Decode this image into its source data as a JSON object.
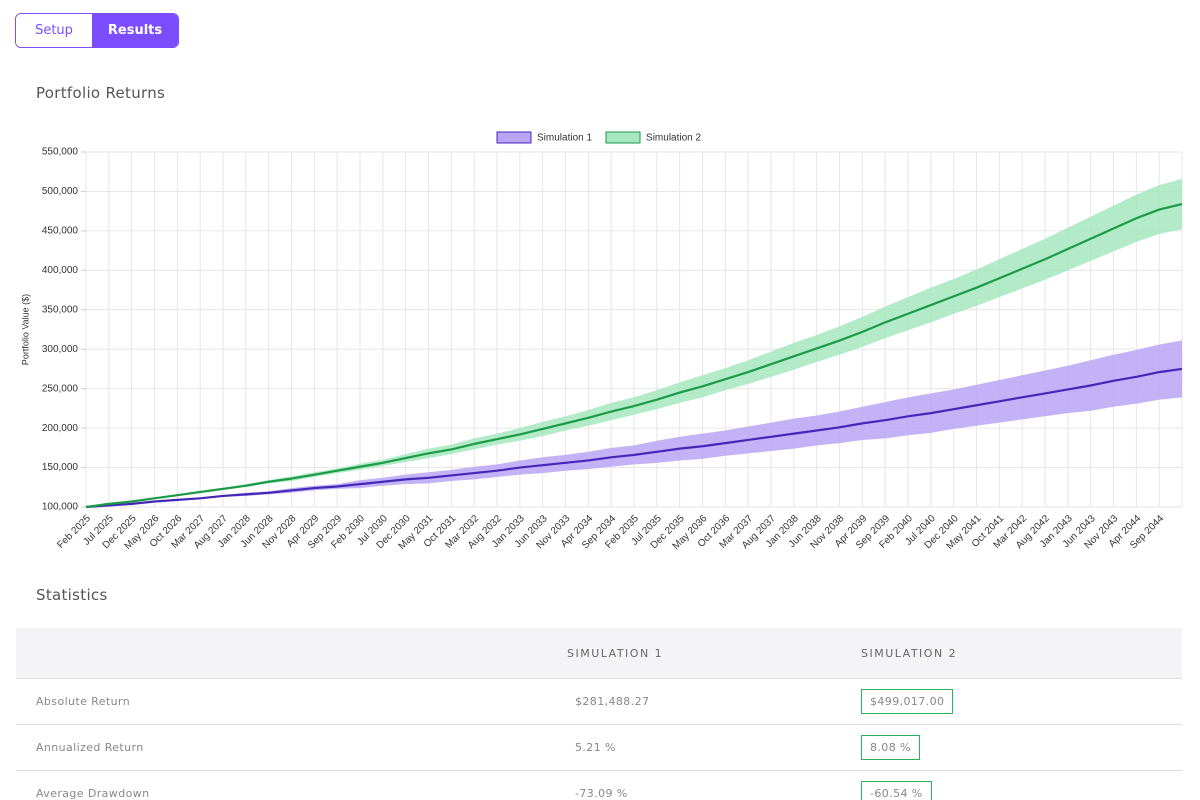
{
  "tabs": [
    "Setup",
    "Results"
  ],
  "chart_data": {
    "type": "line",
    "title": "Portfolio Returns",
    "y_label": "Portfolio Value ($)",
    "categories": [
      "Feb 2025",
      "Jul 2025",
      "Dec 2025",
      "May 2026",
      "Oct 2026",
      "Mar 2027",
      "Aug 2027",
      "Jan 2028",
      "Jun 2028",
      "Nov 2028",
      "Apr 2029",
      "Sep 2029",
      "Feb 2030",
      "Jul 2030",
      "Dec 2030",
      "May 2031",
      "Oct 2031",
      "Mar 2032",
      "Aug 2032",
      "Jan 2033",
      "Jun 2033",
      "Nov 2033",
      "Apr 2034",
      "Sep 2034",
      "Feb 2035",
      "Jul 2035",
      "Dec 2035",
      "May 2036",
      "Oct 2036",
      "Mar 2037",
      "Aug 2037",
      "Jan 2038",
      "Jun 2038",
      "Nov 2038",
      "Apr 2039",
      "Sep 2039",
      "Feb 2040",
      "Jul 2040",
      "Dec 2040",
      "May 2041",
      "Oct 2041",
      "Mar 2042",
      "Aug 2042",
      "Jan 2043",
      "Jun 2043",
      "Nov 2043",
      "Apr 2044",
      "Sep 2044",
      null
    ],
    "series": [
      {
        "name": "Simulation 1",
        "color": "#4527b8",
        "band_color": "#b9a5f4",
        "values": [
          100000,
          102000,
          104000,
          107000,
          109000,
          111000,
          114000,
          116000,
          118000,
          121000,
          124000,
          126000,
          129000,
          132000,
          135000,
          137000,
          140000,
          143000,
          146000,
          150000,
          153000,
          156000,
          159000,
          163000,
          166000,
          170000,
          174000,
          177000,
          181000,
          185000,
          189000,
          193000,
          197000,
          201000,
          206000,
          210000,
          215000,
          219000,
          224000,
          229000,
          234000,
          239000,
          244000,
          249000,
          254000,
          260000,
          265000,
          271000,
          275000
        ],
        "lower": [
          100000,
          102000,
          104000,
          106000,
          108000,
          110000,
          113000,
          114000,
          116000,
          118000,
          121000,
          123000,
          124000,
          127000,
          129000,
          130000,
          133000,
          135000,
          138000,
          141000,
          143000,
          146000,
          148000,
          151000,
          154000,
          156000,
          159000,
          161000,
          165000,
          168000,
          171000,
          174000,
          178000,
          181000,
          185000,
          187000,
          191000,
          194000,
          199000,
          203000,
          207000,
          211000,
          215000,
          219000,
          222000,
          227000,
          231000,
          236000,
          239000
        ],
        "upper": [
          100000,
          102000,
          104000,
          108000,
          110000,
          112000,
          115000,
          118000,
          120000,
          124000,
          127000,
          129000,
          134000,
          137000,
          141000,
          144000,
          147000,
          151000,
          154000,
          159000,
          163000,
          166000,
          170000,
          175000,
          178000,
          184000,
          189000,
          193000,
          197000,
          202000,
          207000,
          212000,
          216000,
          221000,
          227000,
          233000,
          239000,
          244000,
          249000,
          255000,
          261000,
          267000,
          273000,
          279000,
          286000,
          293000,
          299000,
          306000,
          311000
        ]
      },
      {
        "name": "Simulation 2",
        "color": "#1c9a48",
        "band_color": "#a6e7c0",
        "values": [
          100000,
          104000,
          107000,
          111000,
          115000,
          119000,
          123000,
          127000,
          132000,
          136000,
          141000,
          146000,
          151000,
          156000,
          162000,
          168000,
          173000,
          180000,
          186000,
          192000,
          199000,
          206000,
          213000,
          221000,
          228000,
          236000,
          245000,
          253000,
          262000,
          271000,
          281000,
          291000,
          301000,
          311000,
          322000,
          334000,
          345000,
          356000,
          367000,
          378000,
          390000,
          402000,
          414000,
          427000,
          440000,
          453000,
          466000,
          477000,
          484000
        ],
        "lower": [
          100000,
          104000,
          107000,
          110000,
          114000,
          118000,
          122000,
          125000,
          130000,
          133000,
          138000,
          143000,
          147000,
          152000,
          157000,
          162000,
          167000,
          173000,
          179000,
          184000,
          190000,
          197000,
          203000,
          210000,
          217000,
          224000,
          232000,
          239000,
          248000,
          256000,
          265000,
          274000,
          284000,
          293000,
          303000,
          314000,
          324000,
          334000,
          345000,
          355000,
          366000,
          377000,
          388000,
          400000,
          412000,
          424000,
          436000,
          446000,
          452000
        ],
        "upper": [
          100000,
          104000,
          107000,
          112000,
          116000,
          120000,
          124000,
          129000,
          134000,
          139000,
          144000,
          149000,
          155000,
          160000,
          167000,
          174000,
          179000,
          187000,
          193000,
          200000,
          208000,
          215000,
          223000,
          232000,
          239000,
          248000,
          258000,
          267000,
          276000,
          286000,
          297000,
          308000,
          318000,
          329000,
          341000,
          354000,
          366000,
          378000,
          389000,
          401000,
          414000,
          427000,
          440000,
          454000,
          468000,
          482000,
          496000,
          508000,
          516000
        ]
      }
    ],
    "ylim": [
      100000,
      550000
    ],
    "yticks": [
      {
        "value": 100000,
        "label": "100,000"
      },
      {
        "value": 150000,
        "label": "150,000"
      },
      {
        "value": 200000,
        "label": "200,000"
      },
      {
        "value": 250000,
        "label": "250,000"
      },
      {
        "value": 300000,
        "label": "300,000"
      },
      {
        "value": 350000,
        "label": "350,000"
      },
      {
        "value": 400000,
        "label": "400,000"
      },
      {
        "value": 450000,
        "label": "450,000"
      },
      {
        "value": 500000,
        "label": "500,000"
      },
      {
        "value": 550000,
        "label": "550,000"
      }
    ],
    "grid": true,
    "legend": "top"
  },
  "statistics": {
    "title": "Statistics",
    "columns": [
      "SIMULATION 1",
      "SIMULATION 2"
    ],
    "rows": [
      [
        "Absolute Return",
        "$281,488.27",
        "$499,017.00"
      ],
      [
        "Annualized Return",
        "5.21 %",
        "8.08 %"
      ],
      [
        "Average Drawdown",
        "-73.09 %",
        "-60.54 %"
      ]
    ]
  }
}
